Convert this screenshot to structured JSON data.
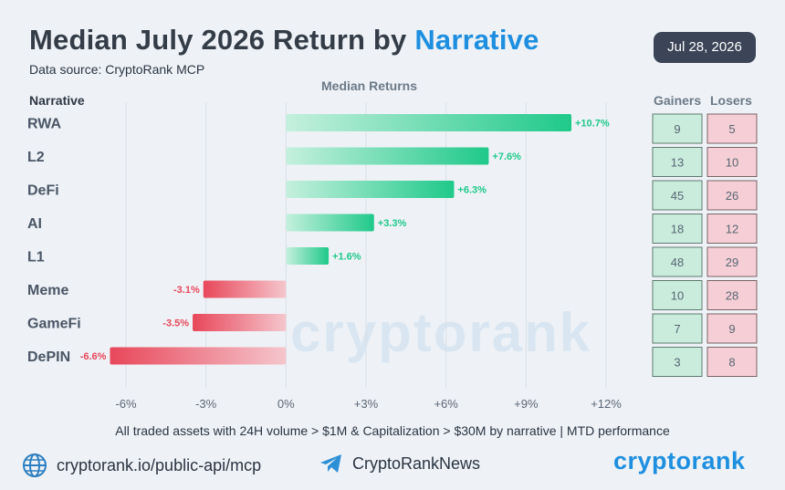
{
  "header": {
    "title_main": "Median July 2026 Return by ",
    "title_highlight": "Narrative",
    "source": "Data source: CryptoRank MCP",
    "date": "Jul 28, 2026"
  },
  "columns": {
    "narrative": "Narrative",
    "median": "Median Returns",
    "gainers": "Gainers",
    "losers": "Losers"
  },
  "chart_data": {
    "type": "bar",
    "orientation": "horizontal",
    "categories": [
      "RWA",
      "L2",
      "DeFi",
      "AI",
      "L1",
      "Meme",
      "GameFi",
      "DePIN"
    ],
    "values": [
      10.7,
      7.6,
      6.3,
      3.3,
      1.6,
      -3.1,
      -3.5,
      -6.6
    ],
    "value_labels": [
      "+10.7%",
      "+7.6%",
      "+6.3%",
      "+3.3%",
      "+1.6%",
      "-3.1%",
      "-3.5%",
      "-6.6%"
    ],
    "xlim": [
      -6,
      12
    ],
    "xticks": [
      -6,
      -3,
      0,
      3,
      6,
      9,
      12
    ],
    "xtick_labels": [
      "-6%",
      "-3%",
      "0%",
      "+3%",
      "+6%",
      "+9%",
      "+12%"
    ],
    "gainers": [
      9,
      13,
      45,
      18,
      48,
      10,
      7,
      3
    ],
    "losers": [
      5,
      10,
      26,
      12,
      29,
      28,
      9,
      8
    ],
    "colors": {
      "positive": "#1fc98a",
      "negative": "#e8475a",
      "gainer_cell": "#c9ecdc",
      "loser_cell": "#f5cfd5"
    }
  },
  "footnote": "All traded assets with 24H volume > $1M & Capitalization > $30M by narrative | MTD performance",
  "footer": {
    "url": "cryptorank.io/public-api/mcp",
    "telegram": "CryptoRankNews",
    "logo": "cryptorank",
    "watermark": "cryptorank"
  },
  "icons": {
    "url": "globe-icon",
    "telegram": "telegram-icon"
  }
}
